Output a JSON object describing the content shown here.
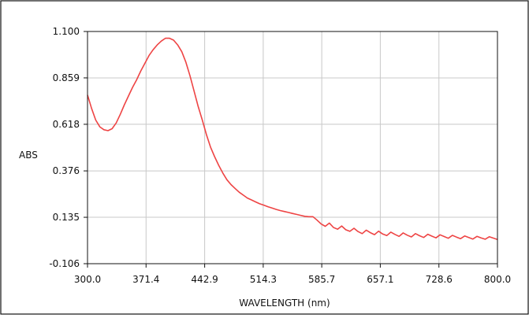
{
  "chart_data": {
    "type": "line",
    "title": "",
    "xlabel": "WAVELENGTH (nm)",
    "ylabel": "ABS",
    "xlim": [
      300.0,
      800.0
    ],
    "ylim": [
      -0.106,
      1.1
    ],
    "x_ticks": [
      "300.0",
      "371.4",
      "442.9",
      "514.3",
      "585.7",
      "657.1",
      "728.6",
      "800.0"
    ],
    "y_ticks": [
      "1.100",
      "0.859",
      "0.618",
      "0.376",
      "0.135",
      "-0.106"
    ],
    "grid": true,
    "colors": {
      "line": "#ee4444",
      "grid": "#c8c8c8",
      "axis": "#111111"
    },
    "series": [
      {
        "x": [
          300,
          305,
          310,
          315,
          320,
          325,
          330,
          335,
          340,
          345,
          350,
          355,
          360,
          365,
          370,
          375,
          380,
          385,
          390,
          395,
          400,
          405,
          410,
          415,
          420,
          425,
          430,
          435,
          440,
          445,
          450,
          455,
          460,
          465,
          470,
          475,
          480,
          485,
          490,
          495,
          500,
          505,
          510,
          515,
          520,
          525,
          530,
          535,
          540,
          545,
          550,
          555,
          560,
          565,
          570,
          575,
          580,
          585,
          590,
          595,
          600,
          605,
          610,
          615,
          620,
          625,
          630,
          635,
          640,
          645,
          650,
          655,
          660,
          665,
          670,
          675,
          680,
          685,
          690,
          695,
          700,
          705,
          710,
          715,
          720,
          725,
          730,
          735,
          740,
          745,
          750,
          755,
          760,
          765,
          770,
          775,
          780,
          785,
          790,
          795,
          800
        ],
        "y": [
          0.77,
          0.7,
          0.64,
          0.605,
          0.59,
          0.585,
          0.595,
          0.625,
          0.67,
          0.72,
          0.765,
          0.81,
          0.85,
          0.895,
          0.935,
          0.975,
          1.005,
          1.03,
          1.05,
          1.065,
          1.065,
          1.055,
          1.03,
          0.995,
          0.94,
          0.87,
          0.79,
          0.71,
          0.64,
          0.565,
          0.5,
          0.45,
          0.405,
          0.365,
          0.33,
          0.305,
          0.285,
          0.265,
          0.25,
          0.235,
          0.225,
          0.215,
          0.205,
          0.198,
          0.19,
          0.183,
          0.176,
          0.17,
          0.165,
          0.16,
          0.155,
          0.15,
          0.145,
          0.14,
          0.138,
          0.138,
          0.12,
          0.1,
          0.088,
          0.105,
          0.082,
          0.073,
          0.09,
          0.07,
          0.062,
          0.078,
          0.061,
          0.05,
          0.068,
          0.055,
          0.045,
          0.063,
          0.048,
          0.04,
          0.058,
          0.046,
          0.036,
          0.054,
          0.042,
          0.033,
          0.05,
          0.039,
          0.03,
          0.047,
          0.037,
          0.028,
          0.044,
          0.035,
          0.026,
          0.041,
          0.032,
          0.024,
          0.038,
          0.03,
          0.022,
          0.036,
          0.028,
          0.021,
          0.034,
          0.027,
          0.02
        ]
      }
    ]
  }
}
